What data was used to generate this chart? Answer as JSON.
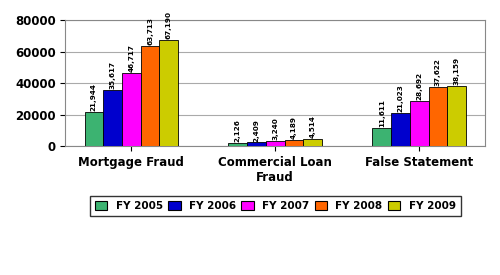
{
  "categories": [
    "Mortgage Fraud",
    "Commercial Loan\nFraud",
    "False Statement"
  ],
  "series": {
    "FY 2005": [
      21944,
      2126,
      11611
    ],
    "FY 2006": [
      35617,
      2409,
      21023
    ],
    "FY 2007": [
      46717,
      3240,
      28692
    ],
    "FY 2008": [
      63713,
      4189,
      37622
    ],
    "FY 2009": [
      67190,
      4514,
      38159
    ]
  },
  "colors": {
    "FY 2005": "#3CB371",
    "FY 2006": "#0000CD",
    "FY 2007": "#FF00FF",
    "FY 2008": "#FF6600",
    "FY 2009": "#CCCC00"
  },
  "bar_labels": {
    "FY 2005": [
      "21,944",
      "2,126",
      "11,611"
    ],
    "FY 2006": [
      "35,617",
      "2,409",
      "21,023"
    ],
    "FY 2007": [
      "46,717",
      "3,240",
      "28,692"
    ],
    "FY 2008": [
      "63,713",
      "4,189",
      "37,622"
    ],
    "FY 2009": [
      "67,190",
      "4,514",
      "38,159"
    ]
  },
  "ylim": [
    0,
    80000
  ],
  "yticks": [
    0,
    20000,
    40000,
    60000,
    80000
  ],
  "bar_width": 0.13,
  "label_fontsize": 5.2,
  "axis_label_fontsize": 8.5,
  "legend_fontsize": 7.5,
  "background_color": "#FFFFFF",
  "grid_color": "#AAAAAA"
}
